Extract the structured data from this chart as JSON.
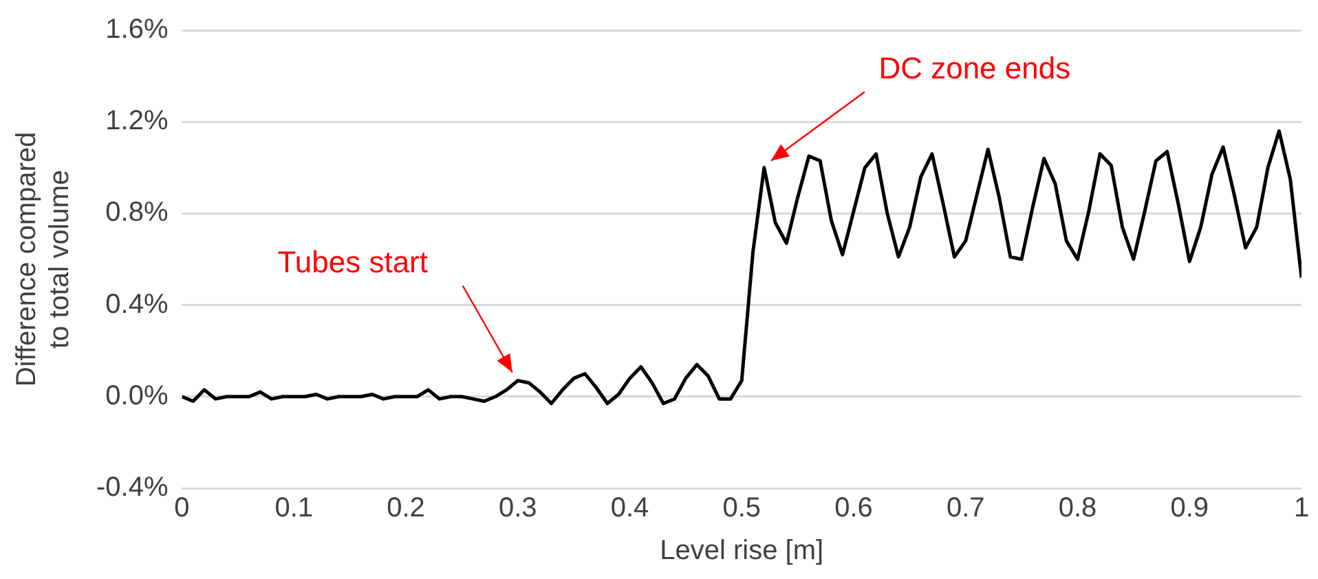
{
  "chart_data": {
    "type": "line",
    "xlabel": "Level rise [m]",
    "ylabel": "Difference compared to total volume",
    "x": [
      0,
      0.01,
      0.02,
      0.03,
      0.04,
      0.05,
      0.06,
      0.07,
      0.08,
      0.09,
      0.1,
      0.11,
      0.12,
      0.13,
      0.14,
      0.15,
      0.16,
      0.17,
      0.18,
      0.19,
      0.2,
      0.21,
      0.22,
      0.23,
      0.24,
      0.25,
      0.26,
      0.27,
      0.28,
      0.29,
      0.3,
      0.31,
      0.32,
      0.33,
      0.34,
      0.35,
      0.36,
      0.37,
      0.38,
      0.39,
      0.4,
      0.41,
      0.42,
      0.43,
      0.44,
      0.45,
      0.46,
      0.47,
      0.48,
      0.49,
      0.5,
      0.51,
      0.52,
      0.53,
      0.54,
      0.55,
      0.56,
      0.57,
      0.58,
      0.59,
      0.6,
      0.61,
      0.62,
      0.63,
      0.64,
      0.65,
      0.66,
      0.67,
      0.68,
      0.69,
      0.7,
      0.71,
      0.72,
      0.73,
      0.74,
      0.75,
      0.76,
      0.77,
      0.78,
      0.79,
      0.8,
      0.81,
      0.82,
      0.83,
      0.84,
      0.85,
      0.86,
      0.87,
      0.88,
      0.89,
      0.9,
      0.91,
      0.92,
      0.93,
      0.94,
      0.95,
      0.96,
      0.97,
      0.98,
      0.99,
      1
    ],
    "series": [
      {
        "color": "#000000",
        "values": [
          0,
          -0.02,
          0.03,
          -0.01,
          0,
          0,
          0,
          0.02,
          -0.01,
          0,
          0,
          0,
          0.01,
          -0.01,
          0,
          0,
          0,
          0.01,
          -0.01,
          0,
          0,
          0,
          0.03,
          -0.01,
          0,
          0,
          -0.01,
          -0.02,
          0,
          0.03,
          0.07,
          0.06,
          0.02,
          -0.03,
          0.03,
          0.08,
          0.1,
          0.04,
          -0.03,
          0.01,
          0.08,
          0.13,
          0.06,
          -0.03,
          -0.01,
          0.08,
          0.14,
          0.09,
          -0.01,
          -0.01,
          0.07,
          0.63,
          1,
          0.76,
          0.67,
          0.87,
          1.05,
          1.03,
          0.77,
          0.62,
          0.81,
          1,
          1.06,
          0.8,
          0.61,
          0.74,
          0.96,
          1.06,
          0.84,
          0.61,
          0.68,
          0.88,
          1.08,
          0.87,
          0.61,
          0.6,
          0.83,
          1.04,
          0.93,
          0.68,
          0.6,
          0.81,
          1.06,
          1.01,
          0.74,
          0.6,
          0.81,
          1.03,
          1.07,
          0.84,
          0.59,
          0.74,
          0.97,
          1.09,
          0.88,
          0.65,
          0.74,
          1,
          1.16,
          0.95,
          0.52
        ]
      }
    ],
    "xlim": [
      0,
      1
    ],
    "xticks": [
      0,
      0.1,
      0.2,
      0.3,
      0.4,
      0.5,
      0.6,
      0.7,
      0.8,
      0.9,
      1
    ],
    "ylim": [
      -0.4,
      1.6
    ],
    "yticks": [
      {
        "value": -0.4,
        "label": "-0.4%"
      },
      {
        "value": 0,
        "label": "0.0%"
      },
      {
        "value": 0.4,
        "label": "0.4%"
      },
      {
        "value": 0.8,
        "label": "0.8%"
      },
      {
        "value": 1.2,
        "label": "1.2%"
      },
      {
        "value": 1.6,
        "label": "1.6%"
      }
    ],
    "grid": "y",
    "legend": false,
    "marker": "none",
    "line_style": "solid",
    "annotations": [
      {
        "text": "Tubes start",
        "x": 0.3,
        "y": 0.07
      },
      {
        "text": "DC zone ends",
        "x": 0.52,
        "y": 1
      }
    ]
  }
}
